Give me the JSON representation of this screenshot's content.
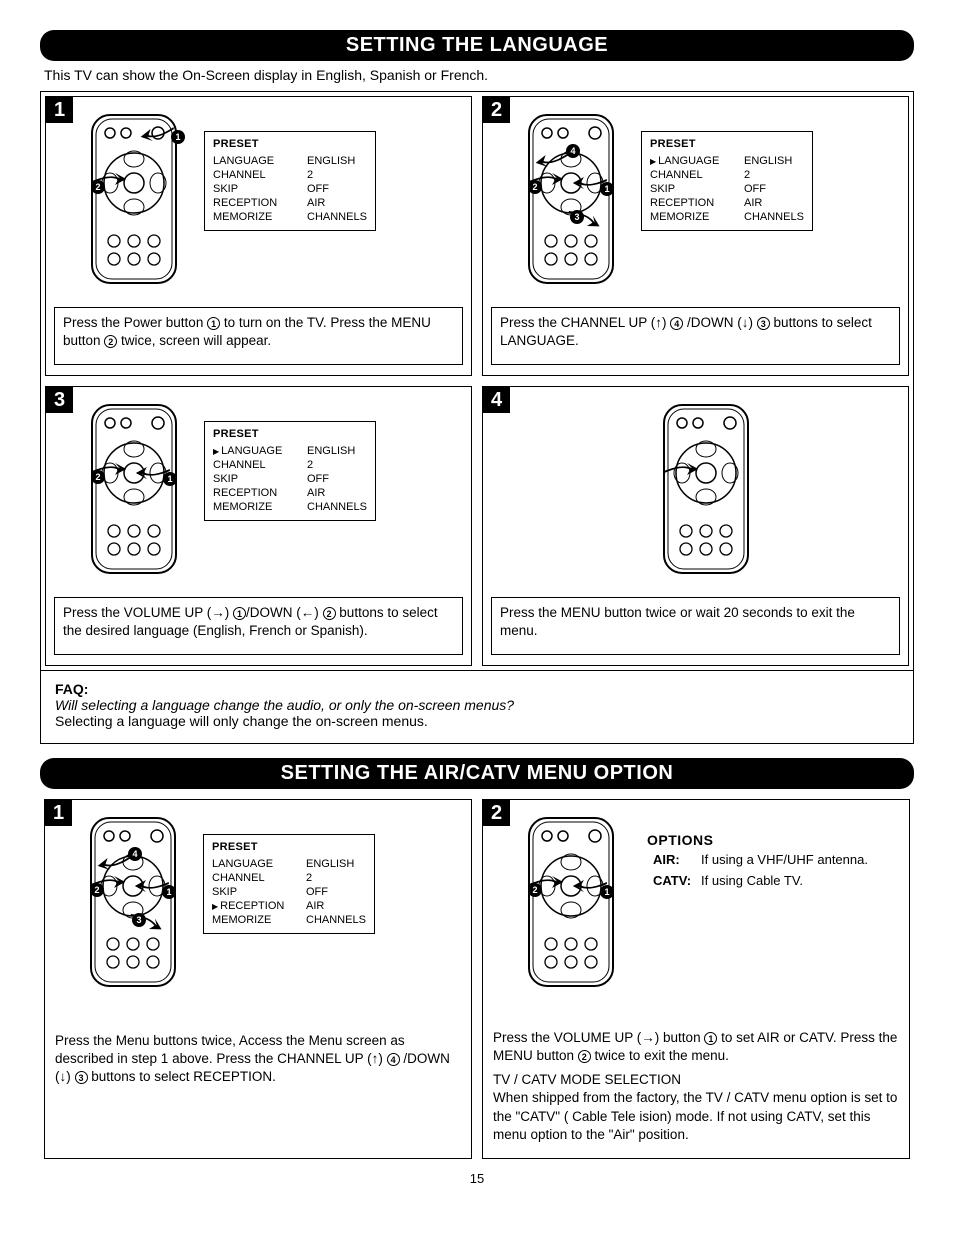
{
  "page_number": "15",
  "colors": {
    "black": "#000000",
    "white": "#ffffff"
  },
  "section1": {
    "title": "SETTING THE LANGUAGE",
    "intro": "This TV can show the On-Screen display in English, Spanish or French.",
    "preset_title": "PRESET",
    "preset_rows": [
      {
        "label": "LANGUAGE",
        "value": "ENGLISH"
      },
      {
        "label": "CHANNEL",
        "value": "2"
      },
      {
        "label": "SKIP",
        "value": "OFF"
      },
      {
        "label": "RECEPTION",
        "value": "AIR"
      },
      {
        "label": "MEMORIZE",
        "value": "CHANNELS"
      }
    ],
    "steps": {
      "s1": {
        "num": "1",
        "caption_a": "Press the Power button ",
        "caption_b": " to turn on the TV. Press the MENU button ",
        "caption_c": " twice, screen will appear.",
        "c1": "1",
        "c2": "2"
      },
      "s2": {
        "num": "2",
        "caption_a": "Press the CHANNEL UP (↑) ",
        "caption_b": " /DOWN (↓) ",
        "caption_c": " buttons to select LANGUAGE.",
        "c1": "4",
        "c2": "3"
      },
      "s3": {
        "num": "3",
        "caption_a": "Press the VOLUME UP (→) ",
        "caption_b": "/DOWN (←) ",
        "caption_c": " buttons to select the desired language (English, French or Spanish).",
        "c1": "1",
        "c2": "2"
      },
      "s4": {
        "num": "4",
        "caption": "Press the MENU button twice or wait 20 seconds to exit the menu."
      }
    },
    "faq_title": "FAQ:",
    "faq_q": "Will selecting a language change the audio, or only the on-screen menus?",
    "faq_a": "Selecting a language will only change the on-screen menus."
  },
  "section2": {
    "title": "SETTING THE AIR/CATV MENU OPTION",
    "steps": {
      "s1": {
        "num": "1",
        "caption_a": "Press the Menu buttons twice, Access the Menu screen as described in step 1 above. Press the CHANNEL UP (↑) ",
        "caption_b": " /DOWN (↓) ",
        "caption_c": " buttons to select RECEPTION.",
        "c1": "4",
        "c2": "3"
      },
      "s2": {
        "num": "2",
        "caption_a": "Press the VOLUME UP (→) button ",
        "caption_b": " to set AIR or CATV. Press the MENU button ",
        "caption_c": " twice to exit the menu.",
        "c1": "1",
        "c2": "2",
        "mode_title": "TV / CATV MODE SELECTION",
        "mode_text": "When shipped from the factory, the TV / CATV menu option is set to the \"CATV\" ( Cable Tele  ision) mode. If not using CATV, set this menu option to the \"Air\" position."
      }
    },
    "options": {
      "title": "OPTIONS",
      "air_label": "AIR:",
      "air_text": "If using a VHF/UHF antenna.",
      "catv_label": "CATV:",
      "catv_text": "If using Cable TV."
    }
  }
}
